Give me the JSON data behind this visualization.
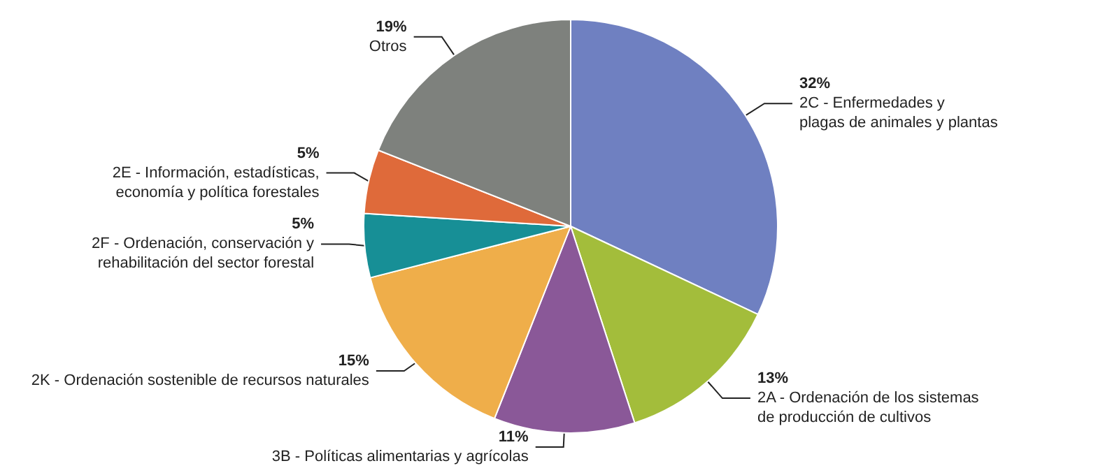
{
  "chart_data": {
    "type": "pie",
    "categories": [
      "2C - Enfermedades y\nplagas de animales y plantas",
      "2A - Ordenación de los sistemas\nde producción de cultivos",
      "3B - Políticas alimentarias y agrícolas",
      "2K - Ordenación sostenible de recursos naturales",
      "2F - Ordenación, conservación y\nrehabilitación del sector forestal",
      "2E - Información, estadísticas,\neconomía y política forestales",
      "Otros"
    ],
    "values": [
      32,
      13,
      11,
      15,
      5,
      5,
      19
    ],
    "colors": [
      "#6f80c1",
      "#a3bd3b",
      "#8a5898",
      "#efae4a",
      "#178f96",
      "#df6a3a",
      "#7e817d"
    ],
    "value_labels": [
      "32%",
      "13%",
      "11%",
      "15%",
      "5%",
      "5%",
      "19%"
    ],
    "legend": false
  }
}
